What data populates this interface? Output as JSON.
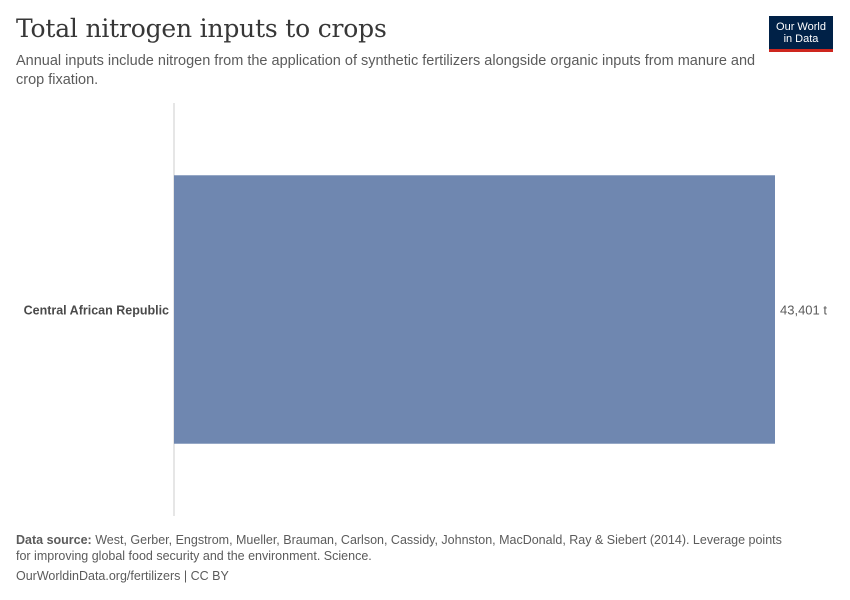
{
  "header": {
    "title": "Total nitrogen inputs to crops",
    "subtitle": "Annual inputs include nitrogen from the application of synthetic fertilizers alongside organic inputs from manure and crop fixation."
  },
  "logo": {
    "line1": "Our World",
    "line2": "in Data",
    "bg_color": "#002147",
    "accent_color": "#ce261e"
  },
  "chart_data": {
    "type": "bar",
    "orientation": "horizontal",
    "categories": [
      "Central African Republic"
    ],
    "values": [
      43401
    ],
    "value_labels": [
      "43,401 t"
    ],
    "bar_color": "#6f87b0",
    "grid": false
  },
  "footer": {
    "source_label": "Data source:",
    "source_text": "West, Gerber, Engstrom, Mueller, Brauman, Carlson, Cassidy, Johnston, MacDonald, Ray & Siebert (2014). Leverage points for improving global food security and the environment. Science.",
    "link_text": "OurWorldinData.org/fertilizers | CC BY"
  }
}
